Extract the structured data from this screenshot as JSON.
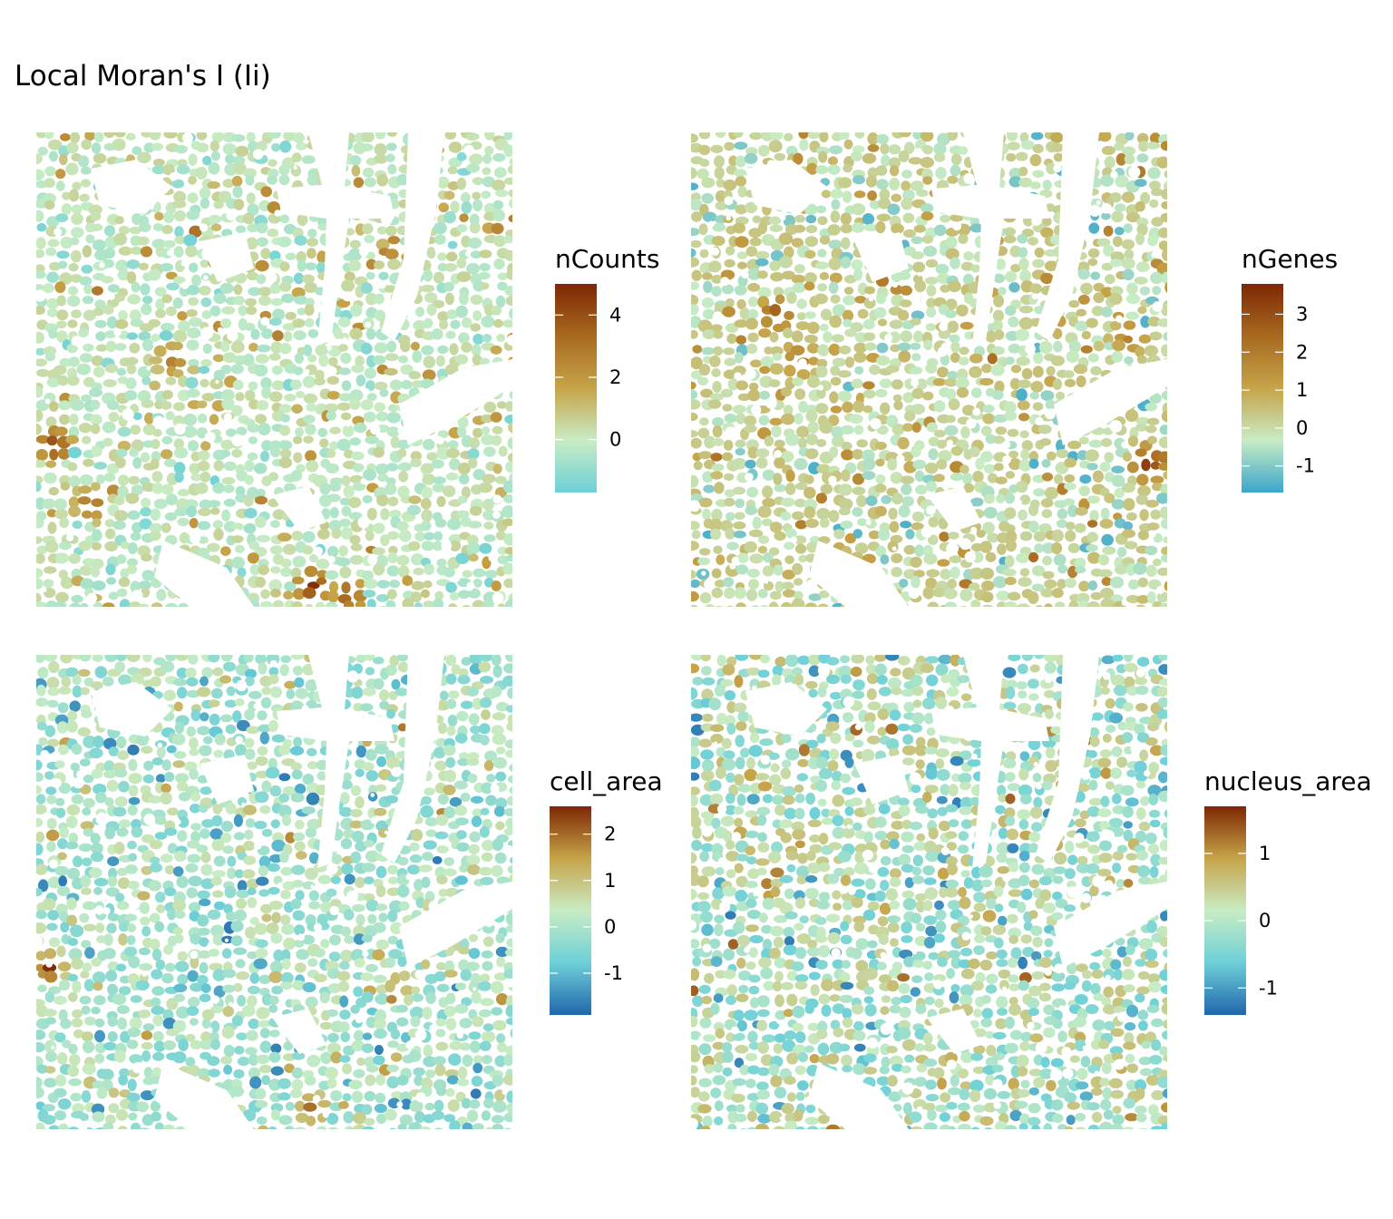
{
  "title": "Local Moran's I (Ii)",
  "palette": {
    "min_color": "#2166ac",
    "low_color": "#6dd0d8",
    "mid_color": "#c8ecc4",
    "high_color": "#c6a449",
    "max_color": "#7f2704",
    "background": "#ffffff"
  },
  "chart_data": [
    {
      "type": "heatmap",
      "variable": "nCounts",
      "legend_title": "nCounts",
      "color_range": [
        -1.7,
        5.0
      ],
      "ticks": [
        0,
        2,
        4
      ],
      "tick_labels": [
        "0",
        "2",
        "4"
      ],
      "legend_colors": [
        "#6dd0d8",
        "#c8ecc4",
        "#c6a449",
        "#a86a20",
        "#7f2704"
      ],
      "hotspots": [
        {
          "location": "left edge, middle",
          "value": 4.8
        },
        {
          "location": "bottom center",
          "value": 5.0
        },
        {
          "location": "bottom center-right",
          "value": 4.2
        },
        {
          "location": "left, lower-middle",
          "value": 3.5
        }
      ]
    },
    {
      "type": "heatmap",
      "variable": "nGenes",
      "legend_title": "nGenes",
      "color_range": [
        -1.7,
        3.8
      ],
      "ticks": [
        -1,
        0,
        1,
        2,
        3
      ],
      "tick_labels": [
        "-1",
        "0",
        "1",
        "2",
        "3"
      ],
      "legend_colors": [
        "#3aa6cc",
        "#c8ecc4",
        "#c6a449",
        "#a86a20",
        "#7f2704"
      ],
      "hotspots": [
        {
          "location": "right edge, middle",
          "value": 3.8
        },
        {
          "location": "upper left",
          "value": 3.0
        },
        {
          "location": "right, upper-middle",
          "value": 2.2
        }
      ]
    },
    {
      "type": "heatmap",
      "variable": "cell_area",
      "legend_title": "cell_area",
      "color_range": [
        -1.9,
        2.6
      ],
      "ticks": [
        -1,
        0,
        1,
        2
      ],
      "tick_labels": [
        "-1",
        "0",
        "1",
        "2"
      ],
      "legend_colors": [
        "#2166ac",
        "#6dd0d8",
        "#c8ecc4",
        "#c6a449",
        "#7f2704"
      ],
      "hotspots": [
        {
          "location": "left edge, lower-middle",
          "value": 2.6
        },
        {
          "location": "bottom center",
          "value": 2.2
        },
        {
          "location": "center (dense region)",
          "value": 1.0
        }
      ]
    },
    {
      "type": "heatmap",
      "variable": "nucleus_area",
      "legend_title": "nucleus_area",
      "color_range": [
        -1.4,
        1.7
      ],
      "ticks": [
        -1,
        0,
        1
      ],
      "tick_labels": [
        "-1",
        "0",
        "1"
      ],
      "legend_colors": [
        "#2166ac",
        "#6dd0d8",
        "#c8ecc4",
        "#c6a449",
        "#7f2704"
      ],
      "hotspots": [
        {
          "location": "top center",
          "value": 1.7
        },
        {
          "location": "upper left",
          "value": 1.3
        }
      ]
    }
  ]
}
